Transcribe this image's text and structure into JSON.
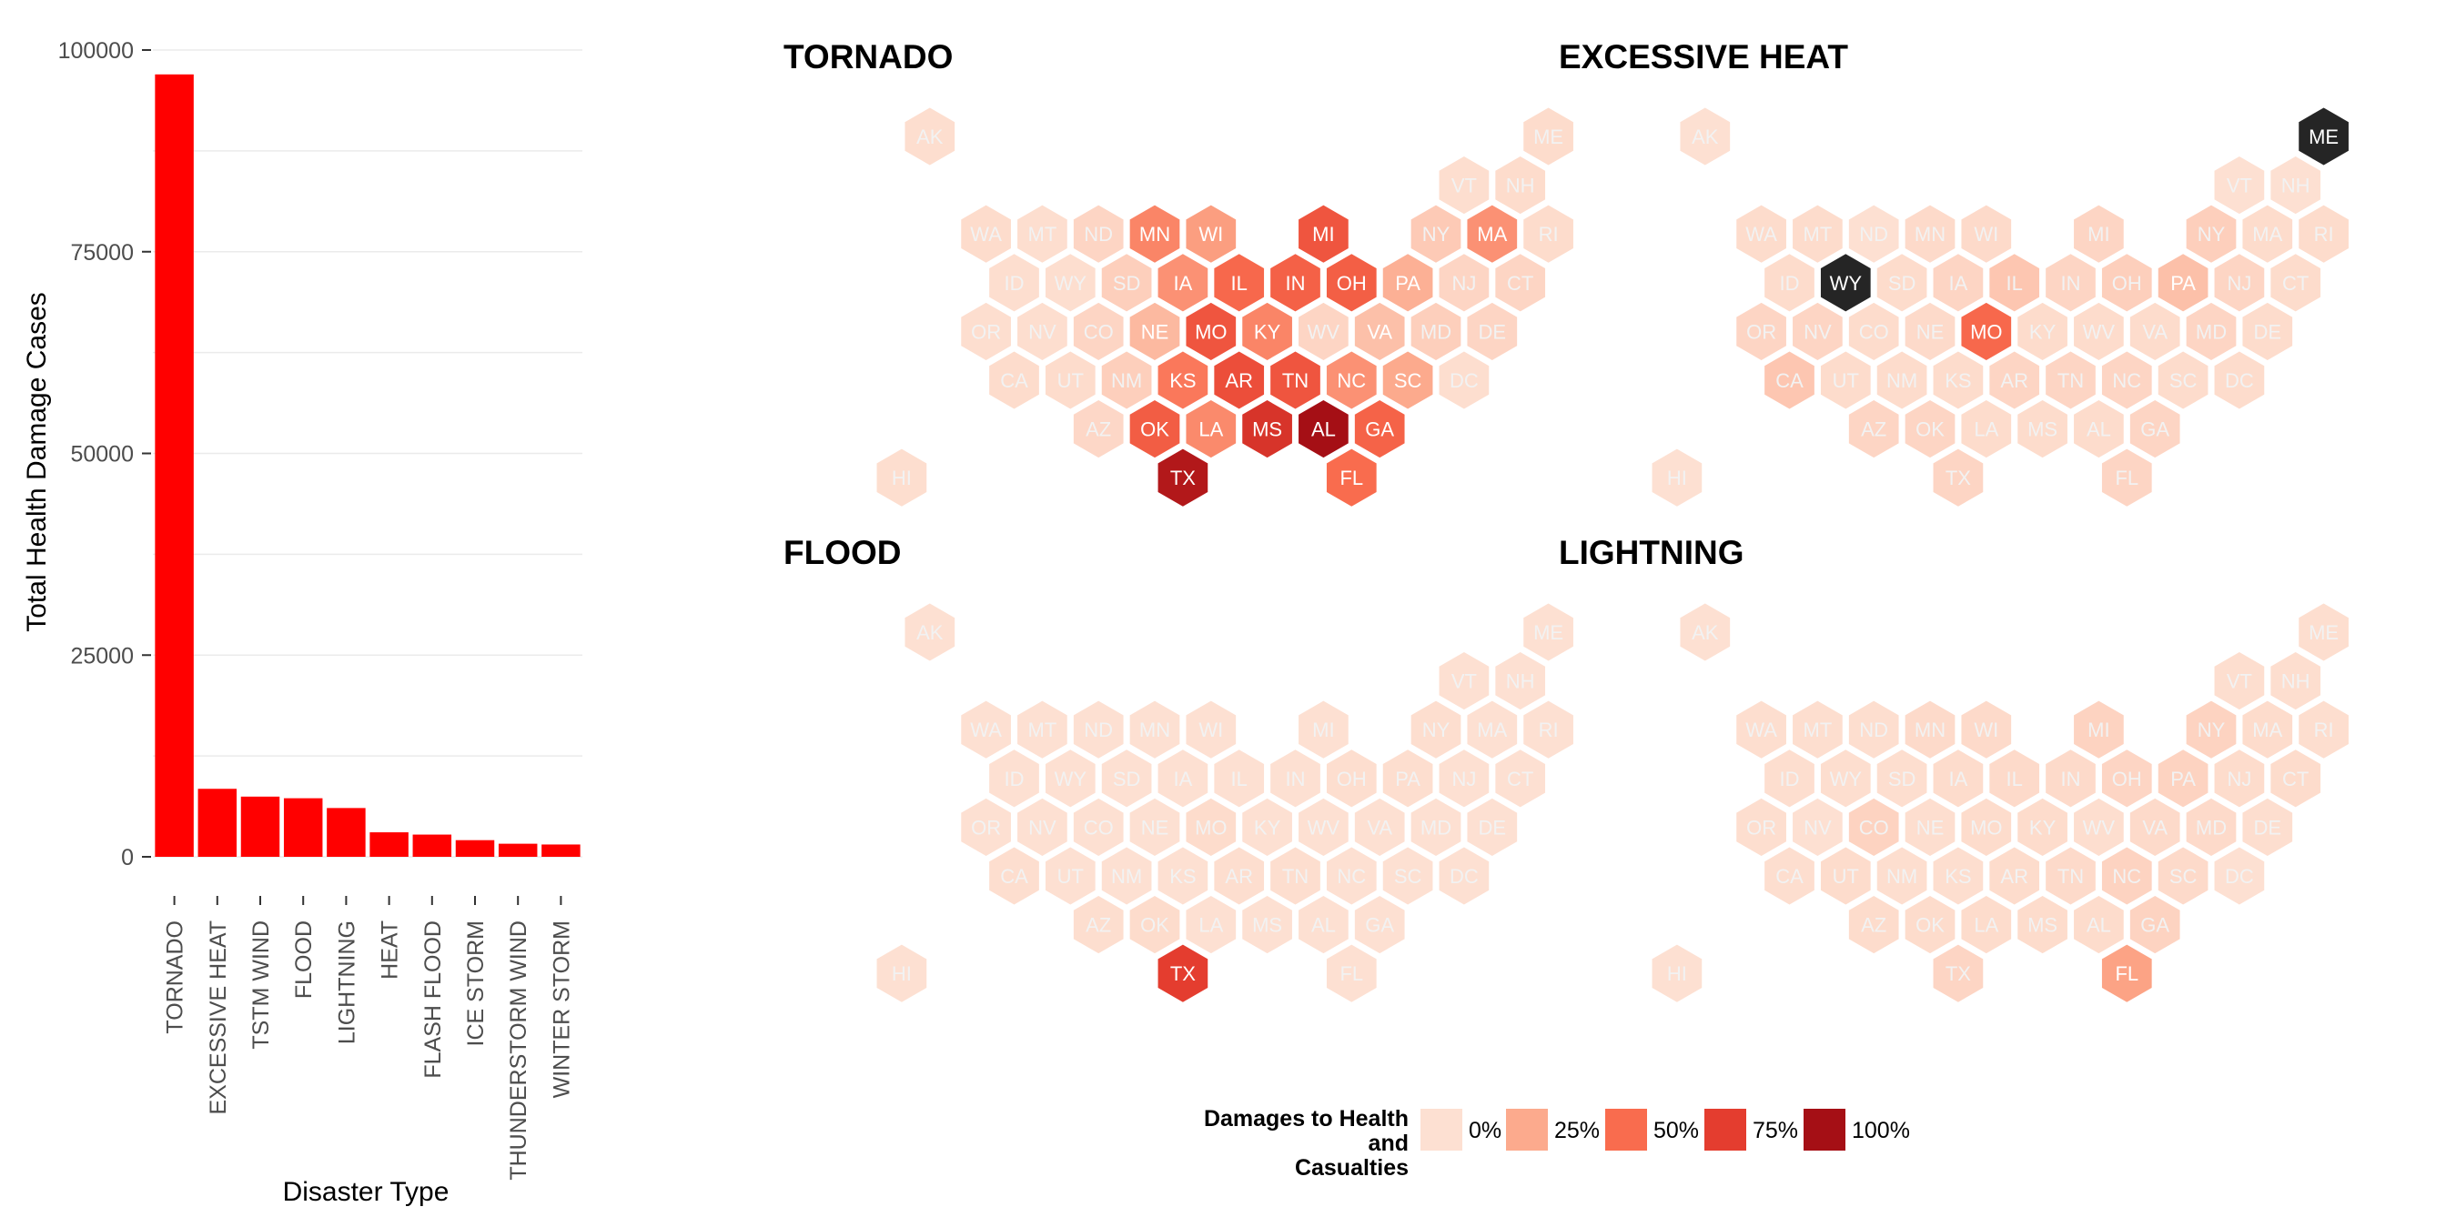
{
  "colors": {
    "bar": "#ff0000",
    "grid": "#ebebeb",
    "tick_text": "#4d4d4d",
    "hex_stroke": "#ffffff",
    "outlier": "#252525",
    "scale": [
      "#fde0d2",
      "#fcaa8d",
      "#f96c4e",
      "#e43d2f",
      "#a50f15"
    ]
  },
  "chart_data": [
    {
      "type": "bar",
      "xlabel": "Disaster Type",
      "ylabel": "Total Health Damage Cases",
      "ylim": [
        0,
        100000
      ],
      "yticks": [
        0,
        25000,
        50000,
        75000,
        100000
      ],
      "grid": true,
      "categories": [
        "TORNADO",
        "EXCESSIVE HEAT",
        "TSTM WIND",
        "FLOOD",
        "LIGHTNING",
        "HEAT",
        "FLASH FLOOD",
        "ICE STORM",
        "THUNDERSTORM WIND",
        "WINTER STORM"
      ],
      "values": [
        96979,
        8428,
        7461,
        7259,
        6046,
        3037,
        2755,
        2064,
        1621,
        1527
      ]
    },
    {
      "type": "heatmap",
      "map": "hexagonal US state grid",
      "legend_title": "Damages to Health and Casualties",
      "legend_title_lines": [
        "Damages to Health",
        "and",
        "Casualties"
      ],
      "legend_labels": [
        "0%",
        "25%",
        "50%",
        "75%",
        "100%"
      ],
      "legend_position": "bottom",
      "panels": [
        {
          "title": "TORNADO",
          "values": {
            "AK": 0.01,
            "ME": 0.02,
            "VT": 0.01,
            "NH": 0.02,
            "WA": 0.02,
            "MT": 0.01,
            "ND": 0.05,
            "MN": 0.4,
            "WI": 0.3,
            "MI": 0.62,
            "NY": 0.1,
            "MA": 0.35,
            "RI": 0.02,
            "ID": 0.01,
            "WY": 0.01,
            "SD": 0.08,
            "IA": 0.35,
            "IL": 0.52,
            "IN": 0.56,
            "OH": 0.57,
            "PA": 0.22,
            "NJ": 0.05,
            "CT": 0.05,
            "OR": 0.01,
            "NV": 0.01,
            "CO": 0.05,
            "NE": 0.18,
            "MO": 0.62,
            "KY": 0.4,
            "WV": 0.05,
            "VA": 0.15,
            "MD": 0.08,
            "DE": 0.05,
            "CA": 0.02,
            "UT": 0.02,
            "NM": 0.08,
            "KS": 0.45,
            "AR": 0.66,
            "TN": 0.62,
            "NC": 0.35,
            "SC": 0.25,
            "DC": 0.01,
            "AZ": 0.04,
            "OK": 0.58,
            "LA": 0.38,
            "MS": 0.8,
            "AL": 1.0,
            "GA": 0.55,
            "HI": 0.01,
            "TX": 0.95,
            "FL": 0.5
          }
        },
        {
          "title": "EXCESSIVE HEAT",
          "values": {
            "AK": 0.0,
            "ME": 1.0,
            "VT": 0.0,
            "NH": 0.0,
            "WA": 0.02,
            "MT": 0.02,
            "ND": 0.0,
            "MN": 0.03,
            "WI": 0.03,
            "MI": 0.05,
            "NY": 0.08,
            "MA": 0.02,
            "RI": 0.02,
            "ID": 0.02,
            "WY": 1.0,
            "SD": 0.02,
            "IA": 0.05,
            "IL": 0.12,
            "IN": 0.05,
            "OH": 0.08,
            "PA": 0.15,
            "NJ": 0.05,
            "CT": 0.02,
            "OR": 0.05,
            "NV": 0.05,
            "CO": 0.02,
            "NE": 0.03,
            "MO": 0.52,
            "KY": 0.02,
            "WV": 0.02,
            "VA": 0.02,
            "MD": 0.05,
            "DE": 0.02,
            "CA": 0.12,
            "UT": 0.02,
            "NM": 0.02,
            "KS": 0.02,
            "AR": 0.05,
            "TN": 0.05,
            "NC": 0.05,
            "SC": 0.02,
            "DC": 0.02,
            "AZ": 0.05,
            "OK": 0.05,
            "LA": 0.02,
            "MS": 0.02,
            "AL": 0.02,
            "GA": 0.05,
            "HI": 0.0,
            "TX": 0.05,
            "FL": 0.05
          },
          "outliers": [
            "ME",
            "WY"
          ]
        },
        {
          "title": "FLOOD",
          "values": {
            "AK": 0.0,
            "ME": 0.0,
            "VT": 0.0,
            "NH": 0.0,
            "WA": 0.0,
            "MT": 0.0,
            "ND": 0.0,
            "MN": 0.0,
            "WI": 0.0,
            "MI": 0.0,
            "NY": 0.01,
            "MA": 0.0,
            "RI": 0.0,
            "ID": 0.0,
            "WY": 0.0,
            "SD": 0.0,
            "IA": 0.0,
            "IL": 0.0,
            "IN": 0.0,
            "OH": 0.01,
            "PA": 0.01,
            "NJ": 0.0,
            "CT": 0.0,
            "OR": 0.0,
            "NV": 0.0,
            "CO": 0.0,
            "NE": 0.0,
            "MO": 0.02,
            "KY": 0.0,
            "WV": 0.0,
            "VA": 0.0,
            "MD": 0.0,
            "DE": 0.0,
            "CA": 0.01,
            "UT": 0.0,
            "NM": 0.0,
            "KS": 0.0,
            "AR": 0.01,
            "TN": 0.01,
            "NC": 0.0,
            "SC": 0.0,
            "DC": 0.0,
            "AZ": 0.01,
            "OK": 0.02,
            "LA": 0.0,
            "MS": 0.0,
            "AL": 0.0,
            "GA": 0.0,
            "HI": 0.0,
            "TX": 0.75,
            "FL": 0.0
          }
        },
        {
          "title": "LIGHTNING",
          "values": {
            "AK": 0.0,
            "ME": 0.01,
            "VT": 0.01,
            "NH": 0.01,
            "WA": 0.01,
            "MT": 0.01,
            "ND": 0.01,
            "MN": 0.03,
            "WI": 0.03,
            "MI": 0.06,
            "NY": 0.06,
            "MA": 0.02,
            "RI": 0.01,
            "ID": 0.01,
            "WY": 0.01,
            "SD": 0.01,
            "IA": 0.02,
            "IL": 0.03,
            "IN": 0.03,
            "OH": 0.05,
            "PA": 0.06,
            "NJ": 0.02,
            "CT": 0.02,
            "OR": 0.01,
            "NV": 0.0,
            "CO": 0.06,
            "NE": 0.01,
            "MO": 0.02,
            "KY": 0.02,
            "WV": 0.01,
            "VA": 0.03,
            "MD": 0.03,
            "DE": 0.01,
            "CA": 0.01,
            "UT": 0.02,
            "NM": 0.01,
            "KS": 0.01,
            "AR": 0.02,
            "TN": 0.03,
            "NC": 0.06,
            "SC": 0.03,
            "DC": 0.0,
            "AZ": 0.02,
            "OK": 0.02,
            "LA": 0.02,
            "MS": 0.02,
            "AL": 0.02,
            "GA": 0.06,
            "HI": 0.0,
            "TX": 0.05,
            "FL": 0.28
          }
        }
      ]
    }
  ]
}
